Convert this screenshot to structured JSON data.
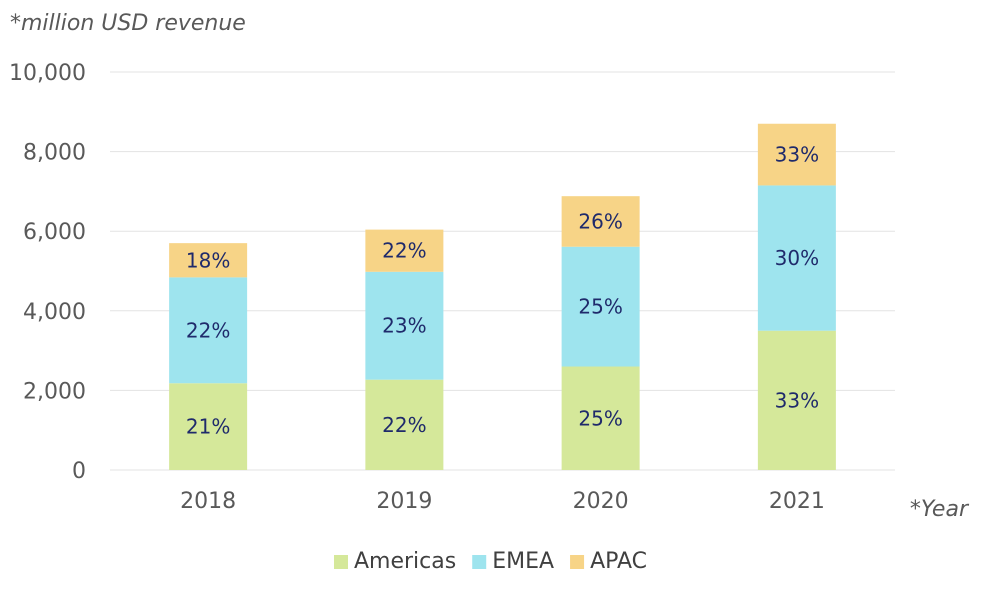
{
  "chart_data": {
    "type": "bar",
    "stacked": true,
    "title": "",
    "ylabel": "*million USD revenue",
    "xlabel": "*Year",
    "categories": [
      "2018",
      "2019",
      "2020",
      "2021"
    ],
    "ylim": [
      0,
      10000
    ],
    "yticks": [
      0,
      2000,
      4000,
      6000,
      8000,
      10000
    ],
    "ytick_labels": [
      "0",
      "2,000",
      "4,000",
      "6,000",
      "8,000",
      "10,000"
    ],
    "grid": true,
    "legend_position": "bottom",
    "series": [
      {
        "name": "Americas",
        "color": "#d5e89a",
        "values": [
          2180,
          2270,
          2600,
          3500
        ],
        "labels": [
          "21%",
          "22%",
          "25%",
          "33%"
        ]
      },
      {
        "name": "EMEA",
        "color": "#9ee4ee",
        "values": [
          2660,
          2710,
          3010,
          3650
        ],
        "labels": [
          "22%",
          "23%",
          "25%",
          "30%"
        ]
      },
      {
        "name": "APAC",
        "color": "#f7d487",
        "values": [
          860,
          1060,
          1270,
          1550
        ],
        "labels": [
          "18%",
          "22%",
          "26%",
          "33%"
        ]
      }
    ]
  }
}
